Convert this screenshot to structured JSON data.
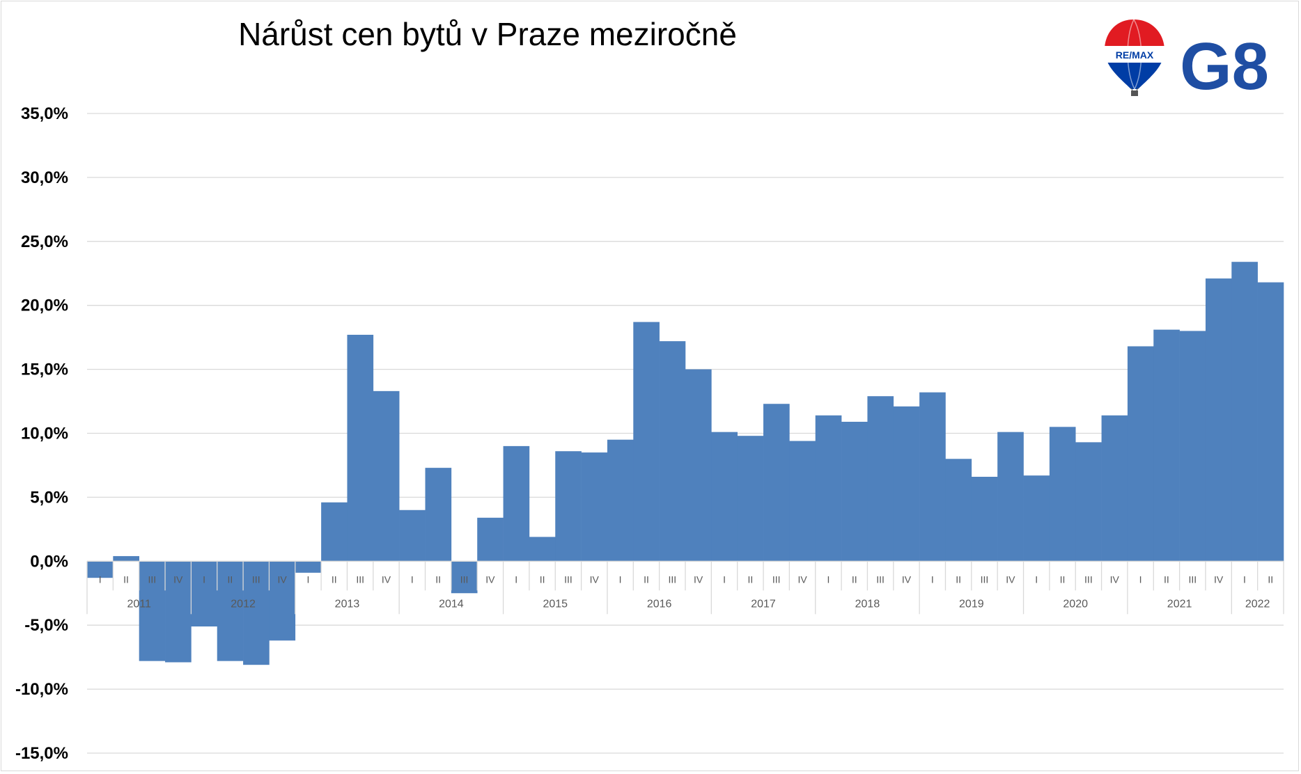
{
  "chart_data": {
    "type": "bar",
    "title": "Nárůst cen bytů v Praze meziročně",
    "xlabel": "",
    "ylabel": "",
    "ylim": [
      -15,
      35
    ],
    "yticks": [
      35,
      30,
      25,
      20,
      15,
      10,
      5,
      0,
      -5,
      -10,
      -15
    ],
    "ytick_labels": [
      "35,0%",
      "30,0%",
      "25,0%",
      "20,0%",
      "15,0%",
      "10,0%",
      "5,0%",
      "0,0%",
      "-5,0%",
      "-10,0%",
      "-15,0%"
    ],
    "grid": true,
    "bar_color": "#4f81bd",
    "years": [
      {
        "label": "2011",
        "quarters": [
          "I",
          "II",
          "III",
          "IV"
        ]
      },
      {
        "label": "2012",
        "quarters": [
          "I",
          "II",
          "III",
          "IV"
        ]
      },
      {
        "label": "2013",
        "quarters": [
          "I",
          "II",
          "III",
          "IV"
        ]
      },
      {
        "label": "2014",
        "quarters": [
          "I",
          "II",
          "III",
          "IV"
        ]
      },
      {
        "label": "2015",
        "quarters": [
          "I",
          "II",
          "III",
          "IV"
        ]
      },
      {
        "label": "2016",
        "quarters": [
          "I",
          "II",
          "III",
          "IV"
        ]
      },
      {
        "label": "2017",
        "quarters": [
          "I",
          "II",
          "III",
          "IV"
        ]
      },
      {
        "label": "2018",
        "quarters": [
          "I",
          "II",
          "III",
          "IV"
        ]
      },
      {
        "label": "2019",
        "quarters": [
          "I",
          "II",
          "III",
          "IV"
        ]
      },
      {
        "label": "2020",
        "quarters": [
          "I",
          "II",
          "III",
          "IV"
        ]
      },
      {
        "label": "2021",
        "quarters": [
          "I",
          "II",
          "III",
          "IV"
        ]
      },
      {
        "label": "2022",
        "quarters": [
          "I",
          "II"
        ]
      }
    ],
    "values": [
      -1.3,
      0.4,
      -7.8,
      -7.9,
      -5.1,
      -7.8,
      -8.1,
      -6.2,
      -0.9,
      4.6,
      17.7,
      13.3,
      4.0,
      7.3,
      -2.5,
      3.4,
      9.0,
      1.9,
      8.6,
      8.5,
      9.5,
      18.7,
      17.2,
      15.0,
      10.1,
      9.8,
      12.3,
      9.4,
      11.4,
      10.9,
      12.9,
      12.1,
      13.2,
      8.0,
      6.6,
      10.1,
      6.7,
      10.5,
      9.3,
      11.4,
      16.8,
      18.1,
      18.0,
      22.1,
      23.4,
      21.8
    ]
  },
  "logo": {
    "balloon_text": "RE/MAX",
    "brand_text": "G8",
    "colors": {
      "red": "#e11b22",
      "blue": "#003da5",
      "brand": "#1f4ea3"
    }
  }
}
